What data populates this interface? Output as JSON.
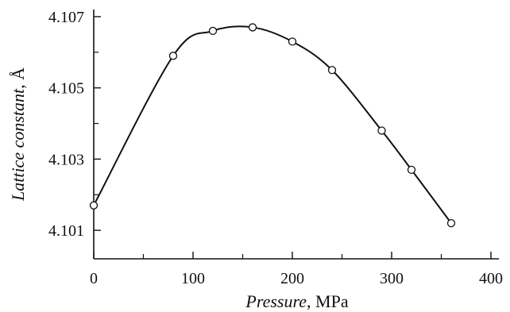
{
  "chart_data": {
    "type": "line",
    "xlabel": "Pressure",
    "xlabel_unit": ", MPa",
    "ylabel": "Lattice constant",
    "ylabel_unit": ", Å",
    "xlim": [
      0,
      400
    ],
    "ylim": [
      4.1002,
      4.1072
    ],
    "x_ticks_major": [
      0,
      100,
      200,
      300,
      400
    ],
    "x_ticks_minor": [
      50,
      150,
      250,
      350
    ],
    "x_tick_labels": [
      "0",
      "100",
      "200",
      "300",
      "400"
    ],
    "y_ticks_major": [
      4.101,
      4.103,
      4.105,
      4.107
    ],
    "y_ticks_minor": [
      4.102,
      4.104,
      4.106
    ],
    "y_tick_labels": [
      "4.101",
      "4.103",
      "4.105",
      "4.107"
    ],
    "grid": false,
    "series": [
      {
        "marker": "open-circle",
        "x": [
          0,
          80,
          120,
          160,
          200,
          240,
          290,
          320,
          360
        ],
        "y": [
          4.1017,
          4.1059,
          4.1066,
          4.1067,
          4.1063,
          4.1055,
          4.1038,
          4.1027,
          4.1012
        ]
      }
    ]
  }
}
